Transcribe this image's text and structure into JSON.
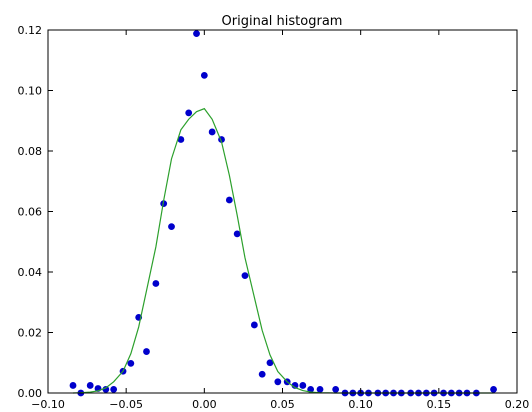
{
  "chart_data": {
    "type": "scatter",
    "title": "Original histogram",
    "xlabel": "",
    "ylabel": "",
    "xlim": [
      -0.1,
      0.2
    ],
    "ylim": [
      0.0,
      0.12
    ],
    "x_ticks": [
      -0.1,
      -0.05,
      0.0,
      0.05,
      0.1,
      0.15,
      0.2
    ],
    "x_tick_labels": [
      "−0.10",
      "−0.05",
      "0.00",
      "0.05",
      "0.10",
      "0.15",
      "0.20"
    ],
    "y_ticks": [
      0.0,
      0.02,
      0.04,
      0.06,
      0.08,
      0.1,
      0.12
    ],
    "y_tick_labels": [
      "0.00",
      "0.02",
      "0.04",
      "0.06",
      "0.08",
      "0.10",
      "0.12"
    ],
    "grid": false,
    "legend": "none",
    "series": [
      {
        "kind": "points",
        "color": "#0000cc",
        "points": [
          [
            -0.084,
            0.0025
          ],
          [
            -0.079,
            0.0
          ],
          [
            -0.073,
            0.0025
          ],
          [
            -0.068,
            0.0015
          ],
          [
            -0.063,
            0.0012
          ],
          [
            -0.058,
            0.0012
          ],
          [
            -0.052,
            0.0072
          ],
          [
            -0.047,
            0.0098
          ],
          [
            -0.042,
            0.025
          ],
          [
            -0.037,
            0.0137
          ],
          [
            -0.031,
            0.0362
          ],
          [
            -0.026,
            0.0626
          ],
          [
            -0.021,
            0.055
          ],
          [
            -0.015,
            0.0838
          ],
          [
            -0.01,
            0.0926
          ],
          [
            -0.005,
            0.1188
          ],
          [
            0.0,
            0.105
          ],
          [
            0.005,
            0.0863
          ],
          [
            0.011,
            0.0838
          ],
          [
            0.016,
            0.0638
          ],
          [
            0.021,
            0.0526
          ],
          [
            0.026,
            0.0388
          ],
          [
            0.032,
            0.0225
          ],
          [
            0.037,
            0.0062
          ],
          [
            0.042,
            0.01
          ],
          [
            0.047,
            0.0037
          ],
          [
            0.053,
            0.0037
          ],
          [
            0.058,
            0.0025
          ],
          [
            0.063,
            0.0025
          ],
          [
            0.068,
            0.0012
          ],
          [
            0.074,
            0.0012
          ],
          [
            0.084,
            0.0012
          ],
          [
            0.09,
            0.0
          ],
          [
            0.095,
            0.0
          ],
          [
            0.1,
            0.0
          ],
          [
            0.105,
            0.0
          ],
          [
            0.111,
            0.0
          ],
          [
            0.116,
            0.0
          ],
          [
            0.121,
            0.0
          ],
          [
            0.126,
            0.0
          ],
          [
            0.132,
            0.0
          ],
          [
            0.137,
            0.0
          ],
          [
            0.142,
            0.0
          ],
          [
            0.147,
            0.0
          ],
          [
            0.153,
            0.0
          ],
          [
            0.158,
            0.0
          ],
          [
            0.163,
            0.0
          ],
          [
            0.168,
            0.0
          ],
          [
            0.174,
            0.0
          ],
          [
            0.185,
            0.0012
          ]
        ]
      },
      {
        "kind": "line",
        "color": "#2ca02c",
        "points": [
          [
            -0.084,
            0.0
          ],
          [
            -0.079,
            0.0001
          ],
          [
            -0.073,
            0.0003
          ],
          [
            -0.068,
            0.0007
          ],
          [
            -0.063,
            0.0017
          ],
          [
            -0.058,
            0.0037
          ],
          [
            -0.052,
            0.0072
          ],
          [
            -0.047,
            0.013
          ],
          [
            -0.042,
            0.0218
          ],
          [
            -0.037,
            0.0338
          ],
          [
            -0.031,
            0.0483
          ],
          [
            -0.026,
            0.0637
          ],
          [
            -0.021,
            0.0774
          ],
          [
            -0.015,
            0.087
          ],
          [
            -0.01,
            0.0905
          ],
          [
            -0.005,
            0.093
          ],
          [
            0.0,
            0.094
          ],
          [
            0.005,
            0.0905
          ],
          [
            0.011,
            0.083
          ],
          [
            0.016,
            0.072
          ],
          [
            0.021,
            0.0588
          ],
          [
            0.026,
            0.0447
          ],
          [
            0.032,
            0.0316
          ],
          [
            0.037,
            0.0207
          ],
          [
            0.042,
            0.0126
          ],
          [
            0.047,
            0.0071
          ],
          [
            0.053,
            0.0037
          ],
          [
            0.058,
            0.0018
          ],
          [
            0.063,
            0.0008
          ],
          [
            0.068,
            0.0003
          ],
          [
            0.074,
            0.0001
          ],
          [
            0.084,
            0.0
          ],
          [
            0.1,
            0.0
          ],
          [
            0.15,
            0.0
          ],
          [
            0.185,
            0.0
          ]
        ]
      }
    ]
  }
}
